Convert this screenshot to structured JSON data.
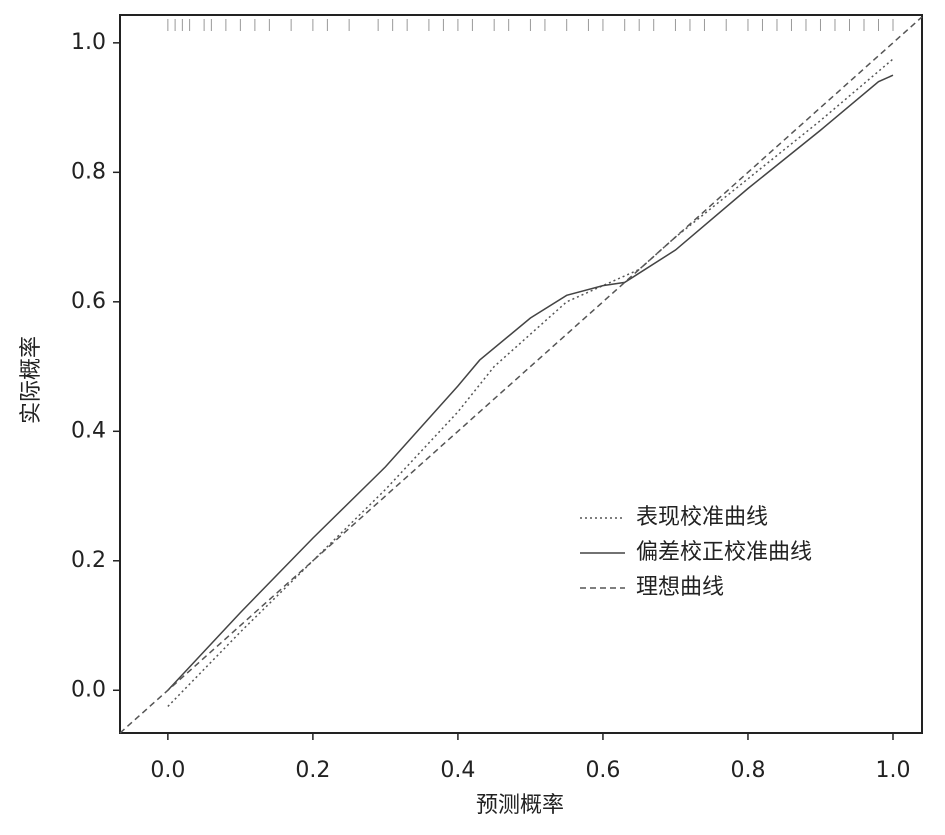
{
  "chart_data": {
    "type": "line",
    "xlabel": "预测概率",
    "ylabel": "实际概率",
    "xlim": [
      -0.066,
      1.04
    ],
    "ylim": [
      -0.066,
      1.043
    ],
    "xticks": [
      {
        "value": 0,
        "label": "0.0"
      },
      0.2,
      0.4,
      0.6,
      0.8,
      {
        "value": 1,
        "label": "1.0"
      }
    ],
    "yticks": [
      {
        "value": 0,
        "label": "0.0"
      },
      0.2,
      0.4,
      0.6,
      0.8,
      {
        "value": 1,
        "label": "1.0"
      }
    ],
    "legend": "lower right",
    "series": [
      {
        "name": "表现校准曲线",
        "color": "#555555",
        "dash": "dotted",
        "x": [
          0,
          0.1,
          0.2,
          0.3,
          0.4,
          0.45,
          0.5,
          0.55,
          0.6,
          0.65,
          0.7,
          0.8,
          0.9,
          1.0
        ],
        "values": [
          -0.025,
          0.09,
          0.2,
          0.31,
          0.43,
          0.5,
          0.55,
          0.6,
          0.625,
          0.65,
          0.7,
          0.79,
          0.88,
          0.975
        ]
      },
      {
        "name": "偏差校正校准曲线",
        "color": "#444444",
        "dash": "solid",
        "x": [
          0,
          0.1,
          0.2,
          0.3,
          0.4,
          0.43,
          0.5,
          0.55,
          0.6,
          0.63,
          0.7,
          0.8,
          0.9,
          0.98,
          1.0
        ],
        "values": [
          0,
          0.12,
          0.235,
          0.345,
          0.47,
          0.51,
          0.575,
          0.61,
          0.625,
          0.63,
          0.68,
          0.775,
          0.865,
          0.94,
          0.95
        ]
      },
      {
        "name": "理想曲线",
        "color": "#555555",
        "dash": "dashed",
        "x": [
          -0.066,
          1.04
        ],
        "values": [
          -0.066,
          1.04
        ]
      }
    ],
    "rug": [
      0.0,
      0.01,
      0.02,
      0.03,
      0.05,
      0.06,
      0.08,
      0.1,
      0.12,
      0.14,
      0.17,
      0.2,
      0.22,
      0.25,
      0.29,
      0.31,
      0.33,
      0.36,
      0.38,
      0.4,
      0.42,
      0.45,
      0.47,
      0.5,
      0.52,
      0.55,
      0.58,
      0.6,
      0.63,
      0.65,
      0.67,
      0.7,
      0.72,
      0.74,
      0.77,
      0.8,
      0.82,
      0.84,
      0.86,
      0.88,
      0.9,
      0.92,
      0.94,
      0.96,
      0.98,
      1.0
    ],
    "rug_color": "#999999"
  }
}
